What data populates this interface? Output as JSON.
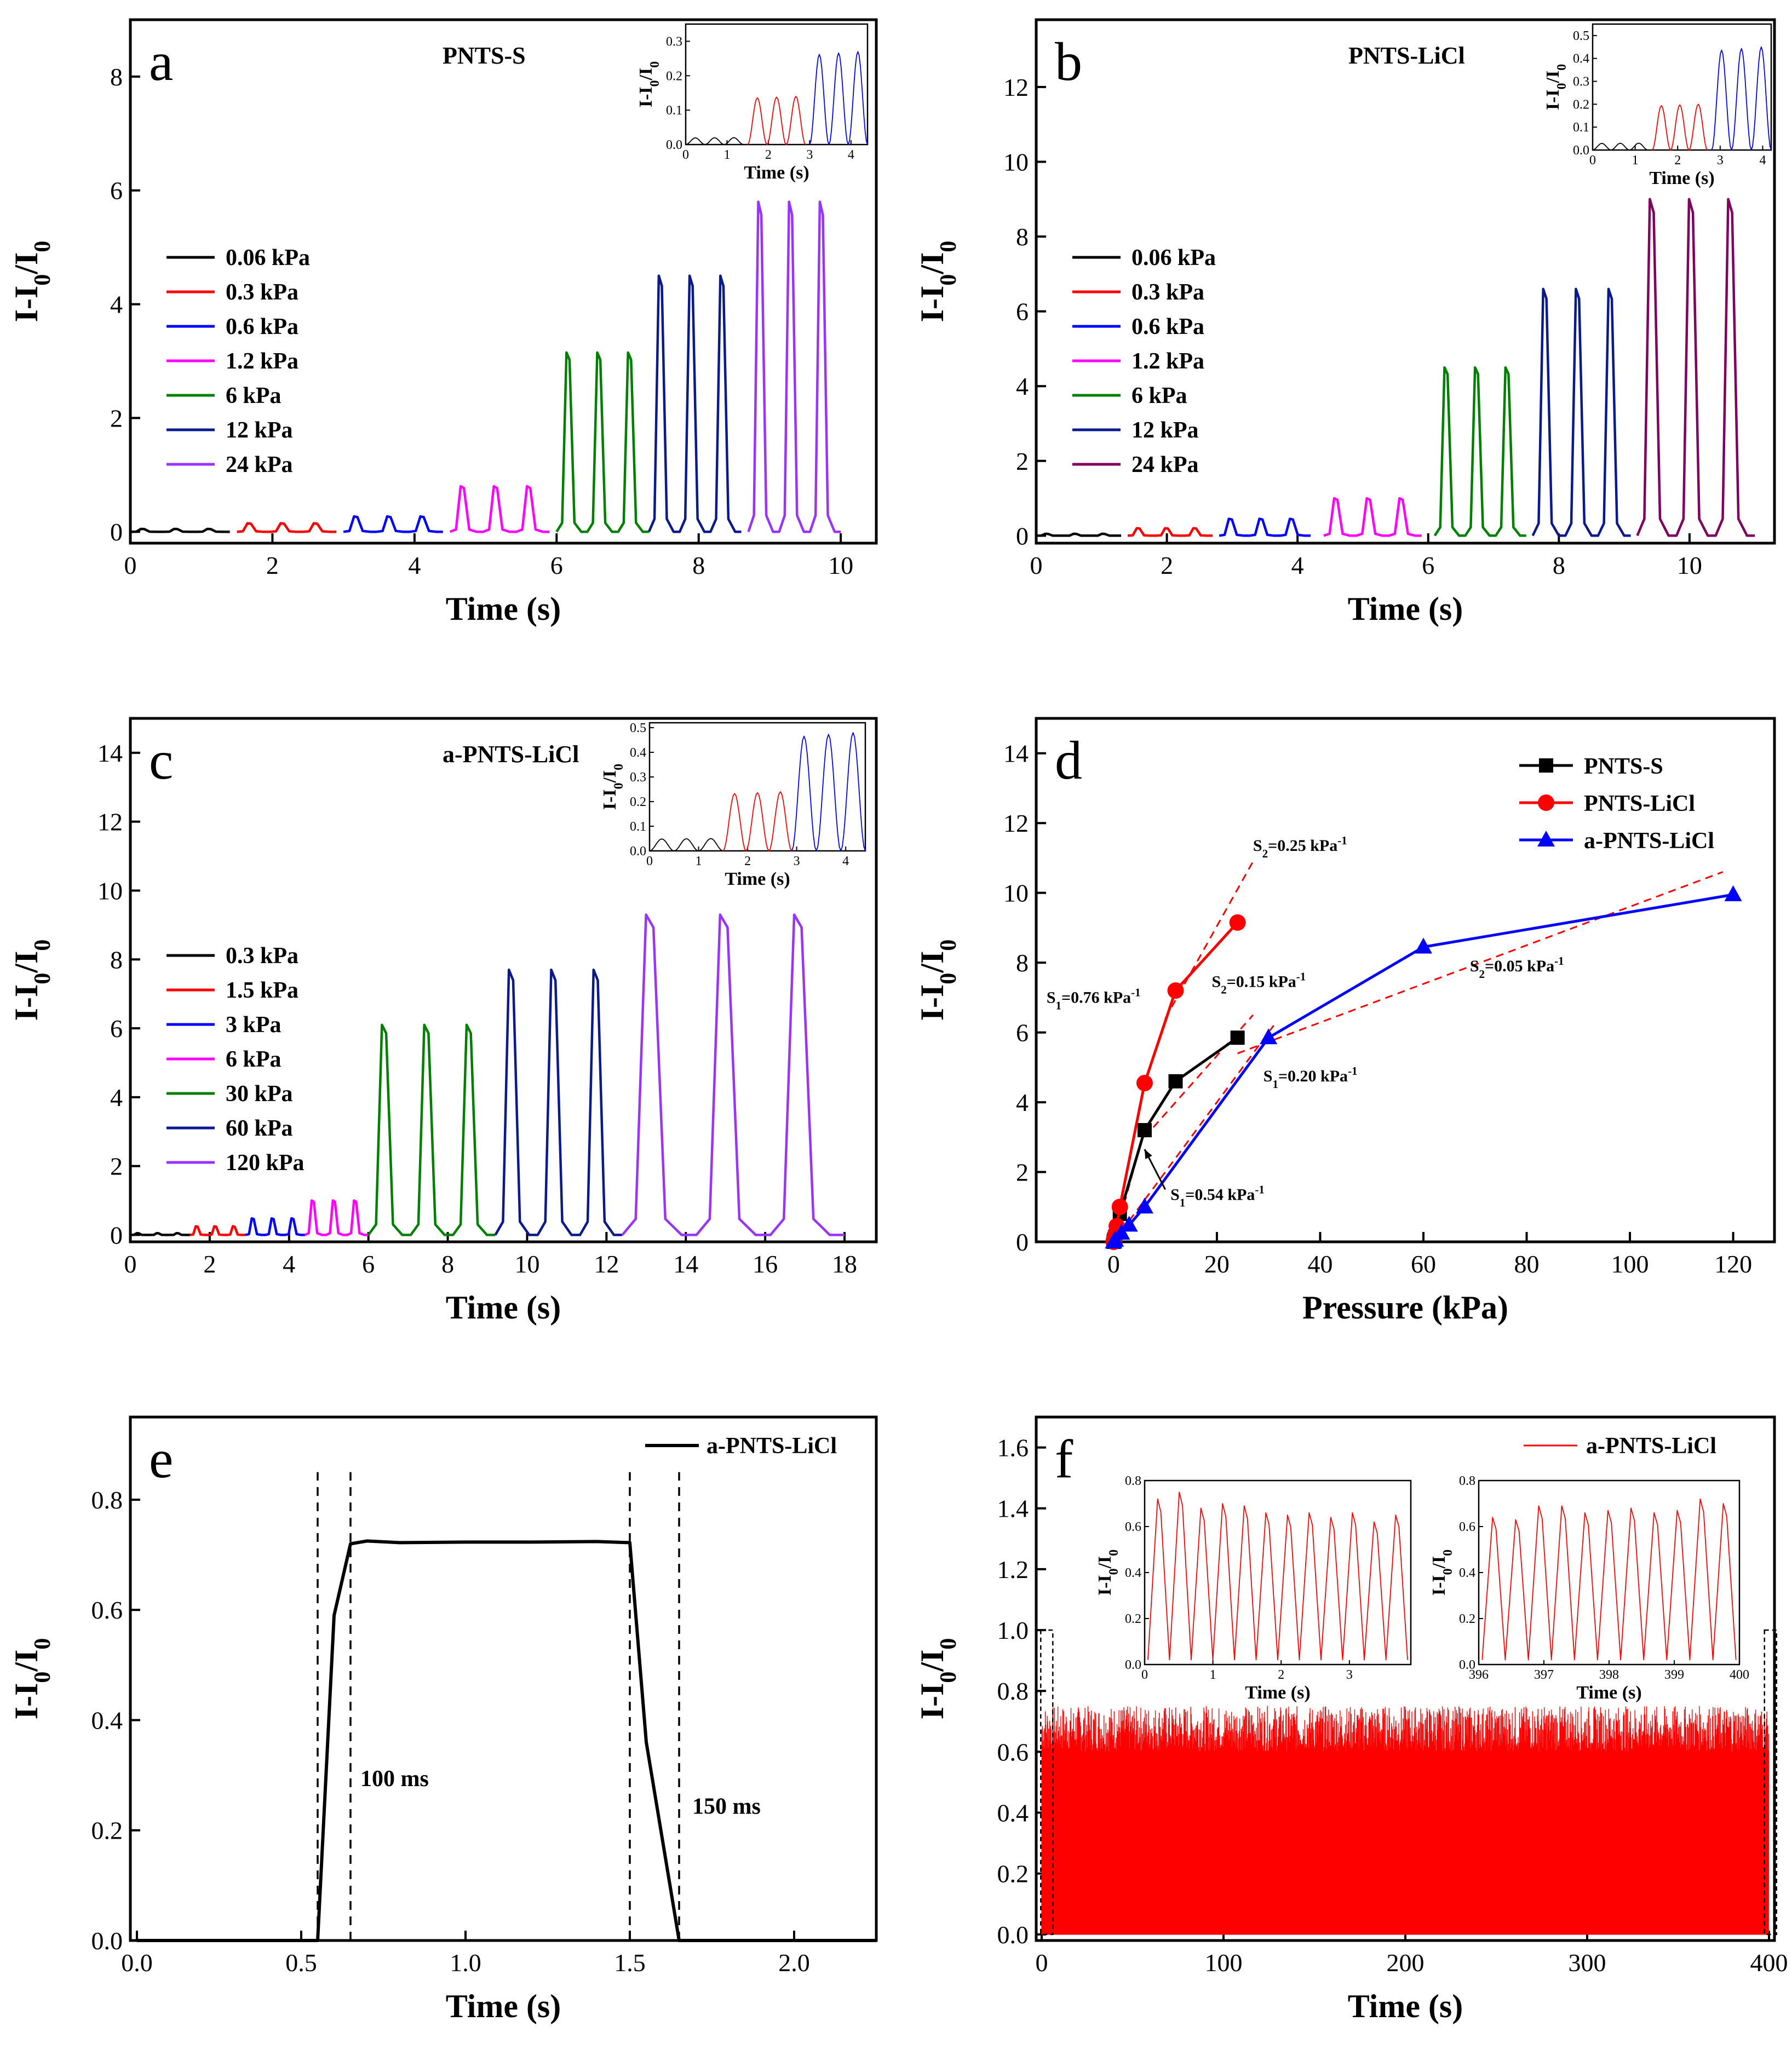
{
  "colors": {
    "black": "#000000",
    "red": "#ff0000",
    "blue": "#0000ff",
    "magenta": "#ff00ff",
    "green": "#008000",
    "navy": "#0a1a8c",
    "violet": "#9933ff",
    "purple": "#800060"
  },
  "chart_data": [
    {
      "id": "a",
      "type": "line",
      "panel_label": "a",
      "title": "PNTS-S",
      "xlabel": "Time (s)",
      "ylabel": "I-I0/I0",
      "xlim": [
        0,
        10.5
      ],
      "ylim": [
        -0.2,
        9
      ],
      "xticks": [
        0,
        2,
        4,
        6,
        8,
        10
      ],
      "yticks": [
        0,
        2,
        4,
        6,
        8
      ],
      "series": [
        {
          "name": "0.06 kPa",
          "color": "black",
          "t0": 0.0,
          "t1": 1.4,
          "cycles": 3,
          "peak": 0.05
        },
        {
          "name": "0.3 kPa",
          "color": "red",
          "t0": 1.5,
          "t1": 2.9,
          "cycles": 3,
          "peak": 0.15
        },
        {
          "name": "0.6 kPa",
          "color": "blue",
          "t0": 3.0,
          "t1": 4.4,
          "cycles": 3,
          "peak": 0.27
        },
        {
          "name": "1.2 kPa",
          "color": "magenta",
          "t0": 4.5,
          "t1": 5.9,
          "cycles": 3,
          "peak": 0.8
        },
        {
          "name": "6 kPa",
          "color": "green",
          "t0": 6.0,
          "t1": 7.3,
          "cycles": 3,
          "peak": 3.15
        },
        {
          "name": "12 kPa",
          "color": "navy",
          "t0": 7.3,
          "t1": 8.6,
          "cycles": 3,
          "peak": 4.5
        },
        {
          "name": "24 kPa",
          "color": "violet",
          "t0": 8.7,
          "t1": 10.0,
          "cycles": 3,
          "peak": 5.8
        }
      ],
      "inset": {
        "xlabel": "Time (s)",
        "ylabel": "I-I0/I0",
        "xlim": [
          0,
          4.4
        ],
        "ylim": [
          0,
          0.35
        ],
        "xticks": [
          0,
          1,
          2,
          3,
          4
        ],
        "yticks": [
          0.0,
          0.1,
          0.2,
          0.3
        ],
        "series": [
          {
            "color": "black",
            "t0": 0.0,
            "t1": 1.4,
            "cycles": 3,
            "peak": 0.02
          },
          {
            "color": "red",
            "t0": 1.5,
            "t1": 2.9,
            "cycles": 3,
            "peak": 0.14
          },
          {
            "color": "blue",
            "t0": 3.0,
            "t1": 4.4,
            "cycles": 3,
            "peak": 0.27
          }
        ]
      }
    },
    {
      "id": "b",
      "type": "line",
      "panel_label": "b",
      "title": "PNTS-LiCl",
      "xlabel": "Time (s)",
      "ylabel": "I-I0/I0",
      "xlim": [
        0,
        11.3
      ],
      "ylim": [
        -0.2,
        13.8
      ],
      "xticks": [
        0,
        2,
        4,
        6,
        8,
        10
      ],
      "yticks": [
        0,
        2,
        4,
        6,
        8,
        10,
        12
      ],
      "series": [
        {
          "name": "0.06 kPa",
          "color": "black",
          "t0": 0.0,
          "t1": 1.3,
          "cycles": 3,
          "peak": 0.05
        },
        {
          "name": "0.3 kPa",
          "color": "red",
          "t0": 1.4,
          "t1": 2.7,
          "cycles": 3,
          "peak": 0.2
        },
        {
          "name": "0.6 kPa",
          "color": "blue",
          "t0": 2.8,
          "t1": 4.2,
          "cycles": 3,
          "peak": 0.45
        },
        {
          "name": "1.2 kPa",
          "color": "magenta",
          "t0": 4.4,
          "t1": 5.9,
          "cycles": 3,
          "peak": 1.0
        },
        {
          "name": "6 kPa",
          "color": "green",
          "t0": 6.1,
          "t1": 7.5,
          "cycles": 3,
          "peak": 4.5
        },
        {
          "name": "12 kPa",
          "color": "navy",
          "t0": 7.6,
          "t1": 9.1,
          "cycles": 3,
          "peak": 6.6
        },
        {
          "name": "24 kPa",
          "color": "purple",
          "t0": 9.2,
          "t1": 11.0,
          "cycles": 3,
          "peak": 9.0
        }
      ],
      "inset": {
        "xlabel": "Time (s)",
        "ylabel": "I-I0/I0",
        "xlim": [
          0,
          4.2
        ],
        "ylim": [
          0,
          0.55
        ],
        "xticks": [
          0,
          1,
          2,
          3,
          4
        ],
        "yticks": [
          0.0,
          0.1,
          0.2,
          0.3,
          0.4,
          0.5
        ],
        "series": [
          {
            "color": "black",
            "t0": 0.0,
            "t1": 1.3,
            "cycles": 3,
            "peak": 0.03
          },
          {
            "color": "red",
            "t0": 1.4,
            "t1": 2.7,
            "cycles": 3,
            "peak": 0.2
          },
          {
            "color": "blue",
            "t0": 2.8,
            "t1": 4.2,
            "cycles": 3,
            "peak": 0.45
          }
        ]
      }
    },
    {
      "id": "c",
      "type": "line",
      "panel_label": "c",
      "title": "a-PNTS-LiCl",
      "xlabel": "Time (s)",
      "ylabel": "I-I0/I0",
      "xlim": [
        0,
        18.8
      ],
      "ylim": [
        -0.2,
        15
      ],
      "xticks": [
        0,
        2,
        4,
        6,
        8,
        10,
        12,
        14,
        16,
        18
      ],
      "yticks": [
        0,
        2,
        4,
        6,
        8,
        10,
        12,
        14
      ],
      "series": [
        {
          "name": "0.3 kPa",
          "color": "black",
          "t0": 0.0,
          "t1": 1.5,
          "cycles": 3,
          "peak": 0.05
        },
        {
          "name": "1.5 kPa",
          "color": "red",
          "t0": 1.5,
          "t1": 2.9,
          "cycles": 3,
          "peak": 0.25
        },
        {
          "name": "3 kPa",
          "color": "blue",
          "t0": 2.9,
          "t1": 4.4,
          "cycles": 3,
          "peak": 0.48
        },
        {
          "name": "6 kPa",
          "color": "magenta",
          "t0": 4.4,
          "t1": 6.0,
          "cycles": 3,
          "peak": 1.0
        },
        {
          "name": "30 kPa",
          "color": "green",
          "t0": 6.0,
          "t1": 9.2,
          "cycles": 3,
          "peak": 6.1
        },
        {
          "name": "60 kPa",
          "color": "navy",
          "t0": 9.2,
          "t1": 12.4,
          "cycles": 3,
          "peak": 7.7
        },
        {
          "name": "120 kPa",
          "color": "violet",
          "t0": 12.4,
          "t1": 18.0,
          "cycles": 3,
          "peak": 9.3
        }
      ],
      "inset": {
        "xlabel": "Time (s)",
        "ylabel": "I-I0/I0",
        "xlim": [
          0,
          4.4
        ],
        "ylim": [
          0,
          0.52
        ],
        "xticks": [
          0,
          1,
          2,
          3,
          4
        ],
        "yticks": [
          0.0,
          0.1,
          0.2,
          0.3,
          0.4,
          0.5
        ],
        "series": [
          {
            "color": "black",
            "t0": 0.0,
            "t1": 1.5,
            "cycles": 3,
            "peak": 0.05
          },
          {
            "color": "red",
            "t0": 1.5,
            "t1": 2.9,
            "cycles": 3,
            "peak": 0.24
          },
          {
            "color": "blue",
            "t0": 2.9,
            "t1": 4.4,
            "cycles": 3,
            "peak": 0.48
          }
        ]
      }
    },
    {
      "id": "d",
      "type": "scatter",
      "panel_label": "d",
      "xlabel": "Pressure (kPa)",
      "ylabel": "I-I0/I0",
      "xlim": [
        -15,
        128
      ],
      "ylim": [
        0,
        15
      ],
      "xticks": [
        0,
        20,
        40,
        60,
        80,
        100,
        120
      ],
      "yticks": [
        0,
        2,
        4,
        6,
        8,
        10,
        12,
        14
      ],
      "series": [
        {
          "name": "PNTS-S",
          "color": "black",
          "marker": "square",
          "x": [
            0,
            0.06,
            0.3,
            0.6,
            1.2,
            6,
            12,
            24
          ],
          "y": [
            0,
            0.05,
            0.15,
            0.27,
            0.8,
            3.2,
            4.6,
            5.85
          ]
        },
        {
          "name": "PNTS-LiCl",
          "color": "red",
          "marker": "circle",
          "x": [
            0,
            0.06,
            0.3,
            0.6,
            1.2,
            6,
            12,
            24
          ],
          "y": [
            0,
            0.05,
            0.2,
            0.45,
            1.0,
            4.55,
            7.2,
            9.15
          ]
        },
        {
          "name": "a-PNTS-LiCl",
          "color": "blue",
          "marker": "triangle",
          "x": [
            0,
            0.3,
            1.5,
            3,
            6,
            30,
            60,
            120
          ],
          "y": [
            0,
            0.05,
            0.25,
            0.48,
            1.0,
            5.85,
            8.45,
            9.95
          ]
        }
      ],
      "fits": [
        {
          "x": [
            0,
            4.2
          ],
          "y": [
            0,
            3.2
          ]
        },
        {
          "x": [
            0,
            4.2
          ],
          "y": [
            0,
            2.25
          ]
        },
        {
          "x": [
            6,
            27
          ],
          "y": [
            3.0,
            6.5
          ]
        },
        {
          "x": [
            10,
            27
          ],
          "y": [
            6.4,
            10.9
          ]
        },
        {
          "x": [
            0,
            31
          ],
          "y": [
            0,
            6.2
          ]
        },
        {
          "x": [
            24,
            118
          ],
          "y": [
            5.4,
            10.6
          ]
        }
      ],
      "annotations": [
        {
          "text": "S2=0.25 kPa-1",
          "base": "S",
          "sub": "2",
          "rest": "=0.25 kPa",
          "sup": "-1",
          "x": 27,
          "y": 11.2
        },
        {
          "text": "S2=0.15 kPa-1",
          "base": "S",
          "sub": "2",
          "rest": "=0.15 kPa",
          "sup": "-1",
          "x": 19,
          "y": 7.3
        },
        {
          "text": "S1=0.76 kPa-1",
          "base": "S",
          "sub": "1",
          "rest": "=0.76 kPa",
          "sup": "-1",
          "x": -13,
          "y": 6.85
        },
        {
          "text": "S2=0.05 kPa-1",
          "base": "S",
          "sub": "2",
          "rest": "=0.05 kPa",
          "sup": "-1",
          "x": 69,
          "y": 7.75
        },
        {
          "text": "S1=0.20 kPa-1",
          "base": "S",
          "sub": "1",
          "rest": "=0.20 kPa",
          "sup": "-1",
          "x": 29,
          "y": 4.6
        },
        {
          "text": "S1=0.54 kPa-1",
          "base": "S",
          "sub": "1",
          "rest": "=0.54 kPa",
          "sup": "-1",
          "x": 11,
          "y": 1.2
        }
      ],
      "arrow": {
        "from": [
          10,
          1.5
        ],
        "to": [
          6,
          2.65
        ]
      }
    },
    {
      "id": "e",
      "type": "line",
      "panel_label": "e",
      "xlabel": "Time (s)",
      "ylabel": "I-I0/I0",
      "xlim": [
        -0.02,
        2.25
      ],
      "ylim": [
        0,
        0.95
      ],
      "xticks": [
        0.0,
        0.5,
        1.0,
        1.5,
        2.0
      ],
      "yticks": [
        0.0,
        0.2,
        0.4,
        0.6,
        0.8
      ],
      "series": [
        {
          "name": "a-PNTS-LiCl",
          "color": "black",
          "x": [
            0,
            0.55,
            0.6,
            0.65,
            0.7,
            0.8,
            1.0,
            1.2,
            1.4,
            1.5,
            1.55,
            1.65,
            2.25
          ],
          "y": [
            0,
            0,
            0.59,
            0.72,
            0.725,
            0.722,
            0.723,
            0.723,
            0.724,
            0.722,
            0.36,
            0,
            0
          ]
        }
      ],
      "vlines": [
        0.55,
        0.65,
        1.5,
        1.65
      ],
      "annotations": [
        {
          "text": "100 ms",
          "x": 0.68,
          "y": 0.28
        },
        {
          "text": "150 ms",
          "x": 1.69,
          "y": 0.23
        }
      ]
    },
    {
      "id": "f",
      "type": "line",
      "panel_label": "f",
      "xlabel": "Time (s)",
      "ylabel": "I-I0/I0",
      "xlim": [
        -3,
        403
      ],
      "ylim": [
        -0.02,
        1.7
      ],
      "xticks": [
        0,
        100,
        200,
        300,
        400
      ],
      "yticks": [
        0.0,
        0.2,
        0.4,
        0.6,
        0.8,
        1.0,
        1.2,
        1.4,
        1.6
      ],
      "series": [
        {
          "name": "a-PNTS-LiCl",
          "color": "red",
          "t0": 0,
          "t1": 400,
          "period": 0.43,
          "peak_mean": 0.67
        }
      ],
      "insets": [
        {
          "xlabel": "Time (s)",
          "ylabel": "I-I0/I0",
          "xlim": [
            0,
            3.9
          ],
          "ylim": [
            0,
            0.8
          ],
          "xticks": [
            0,
            1,
            2,
            3
          ],
          "yticks": [
            0.0,
            0.2,
            0.4,
            0.6,
            0.8
          ],
          "peaks": [
            0.72,
            0.75,
            0.68,
            0.7,
            0.69,
            0.66,
            0.65,
            0.66,
            0.64,
            0.66,
            0.62,
            0.65
          ]
        },
        {
          "xlabel": "Time (s)",
          "ylabel": "I-I0/I0",
          "xlim": [
            396,
            400
          ],
          "ylim": [
            0,
            0.8
          ],
          "xticks": [
            396,
            397,
            398,
            399,
            400
          ],
          "yticks": [
            0.0,
            0.2,
            0.4,
            0.6,
            0.8
          ],
          "peaks": [
            0.64,
            0.63,
            0.69,
            0.69,
            0.66,
            0.67,
            0.68,
            0.66,
            0.67,
            0.72,
            0.7
          ]
        }
      ]
    }
  ]
}
